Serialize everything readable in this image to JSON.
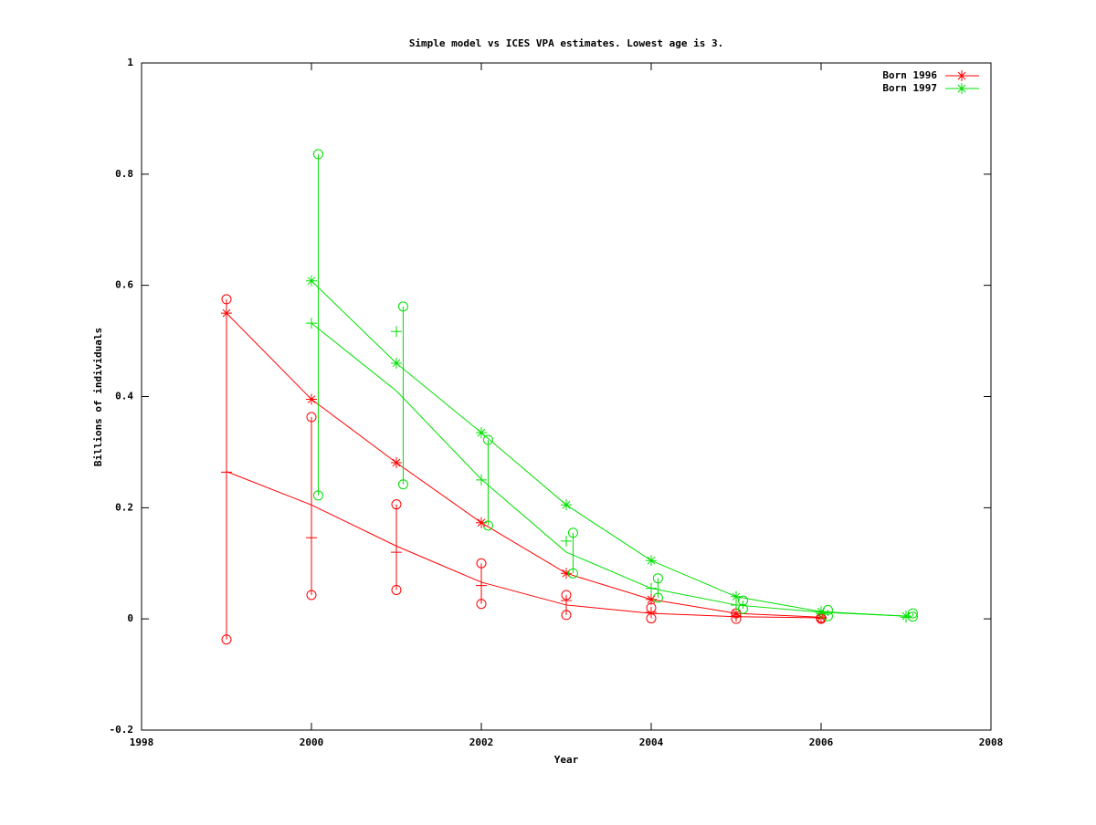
{
  "chart_data": {
    "type": "line",
    "title": "Simple model vs ICES VPA estimates. Lowest age is 3.",
    "x_label": "Year",
    "y_label": "Billions of individuals",
    "xlim": [
      1998,
      2008
    ],
    "xticks": [
      1998,
      2000,
      2002,
      2004,
      2006,
      2008
    ],
    "ylim": [
      -0.2,
      1
    ],
    "yticks": [
      -0.2,
      0,
      0.2,
      0.4,
      0.6,
      0.8,
      1
    ],
    "legend_position": "top-right",
    "series": [
      {
        "name": "Born 1996",
        "color": "#ff0000",
        "x": [
          1999,
          2000,
          2001,
          2002,
          2003,
          2004,
          2005,
          2006
        ],
        "vpa": [
          0.55,
          0.395,
          0.281,
          0.173,
          0.082,
          0.035,
          0.01,
          0.003
        ],
        "model": [
          0.265,
          0.205,
          0.131,
          0.066,
          0.025,
          0.01,
          0.004,
          0.002
        ],
        "estimate": [
          0.264,
          0.146,
          0.12,
          0.06,
          0.033,
          0.012,
          0.005,
          0.001
        ],
        "bar_x": [
          1999,
          2000,
          2001,
          2002,
          2003,
          2004,
          2005,
          2006
        ],
        "upper": [
          0.575,
          0.363,
          0.206,
          0.1,
          0.043,
          0.02,
          0.01,
          0.002
        ],
        "lower": [
          -0.037,
          0.043,
          0.052,
          0.027,
          0.007,
          0.001,
          0.0,
          0.0
        ]
      },
      {
        "name": "Born 1997",
        "color": "#00e000",
        "x": [
          2000,
          2001,
          2002,
          2003,
          2004,
          2005,
          2006,
          2007
        ],
        "vpa": [
          0.608,
          0.46,
          0.335,
          0.205,
          0.105,
          0.04,
          0.013,
          0.005
        ],
        "model": [
          0.532,
          0.41,
          0.251,
          0.12,
          0.055,
          0.025,
          0.012,
          0.005
        ],
        "estimate": [
          0.532,
          0.517,
          0.25,
          0.14,
          0.055,
          0.025,
          0.01,
          0.003
        ],
        "bar_x": [
          2000.08,
          2001.08,
          2002.08,
          2003.08,
          2004.08,
          2005.08,
          2006.08,
          2007.08
        ],
        "upper": [
          0.836,
          0.562,
          0.322,
          0.155,
          0.073,
          0.033,
          0.016,
          0.01
        ],
        "lower": [
          0.222,
          0.242,
          0.168,
          0.082,
          0.038,
          0.018,
          0.005,
          0.004
        ]
      }
    ]
  }
}
